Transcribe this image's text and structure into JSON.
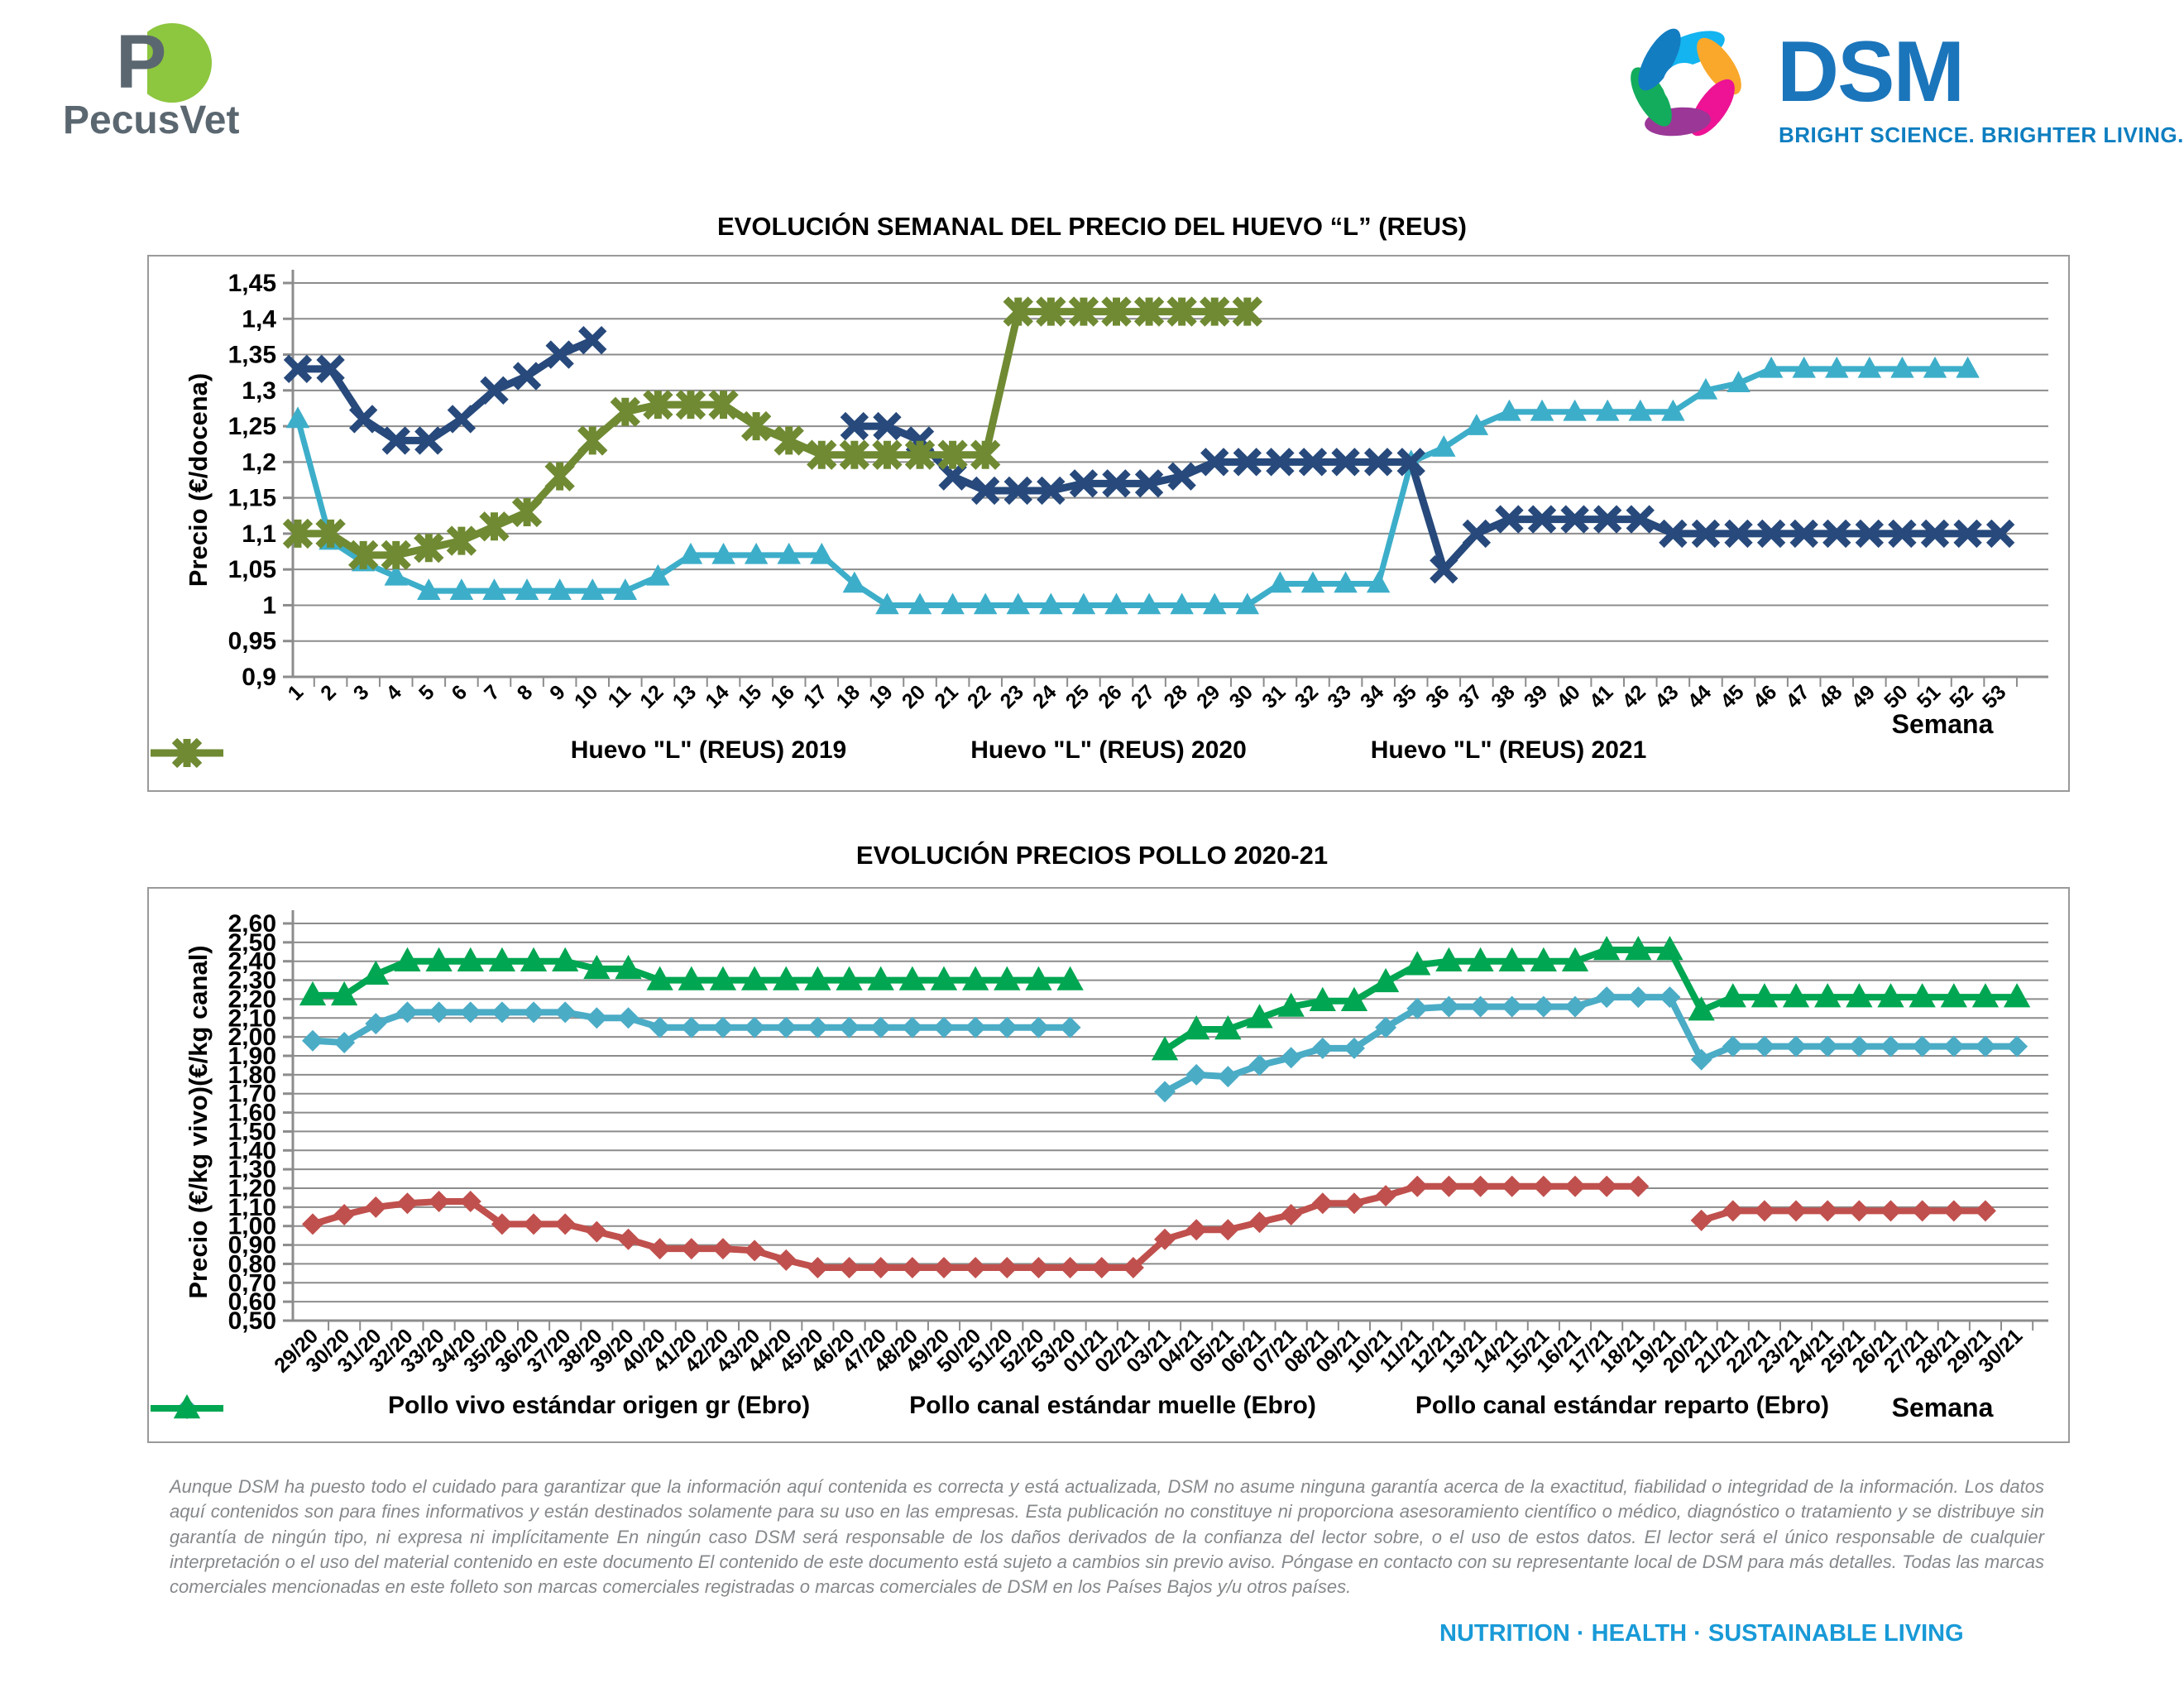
{
  "header": {
    "pecusvet_text": "PecusVet",
    "dsm_text": "DSM",
    "dsm_tagline": "BRIGHT SCIENCE. BRIGHTER LIVING."
  },
  "footer": {
    "disclaimer": "Aunque DSM ha puesto todo el cuidado para garantizar que la información aquí contenida es correcta y está actualizada, DSM no asume ninguna garantía acerca de la exactitud, fiabilidad o integridad de la información. Los datos aquí contenidos son para fines informativos y están destinados solamente para su uso en las empresas. Esta publicación no constituye ni proporciona asesoramiento científico o médico, diagnóstico o tratamiento y se distribuye sin garantía de ningún tipo, ni expresa ni implícitamente En ningún caso DSM será responsable de los daños derivados de la confianza del lector sobre, o el uso de estos datos. El lector será el único responsable de cualquier interpretación o el uso del material contenido en este documento El contenido de este documento está sujeto a cambios sin previo aviso. Póngase en contacto con su representante local de DSM para más detalles. Todas las marcas comerciales mencionadas en este folleto son marcas comerciales registradas o marcas comerciales de DSM en los Países Bajos y/u otros países.",
    "motto": "NUTRITION  ·  HEALTH  ·  SUSTAINABLE LIVING"
  },
  "chart_data": [
    {
      "type": "line",
      "title": "EVOLUCIÓN SEMANAL DEL PRECIO DEL HUEVO “L” (REUS)",
      "ylabel": "Precio (€/docena)",
      "xlabel": "Semana",
      "ylim": [
        0.9,
        1.45
      ],
      "ytick_step": 0.05,
      "ytick_decimals": "trim",
      "grid": true,
      "legend_position": "bottom",
      "categories": [
        "1",
        "2",
        "3",
        "4",
        "5",
        "6",
        "7",
        "8",
        "9",
        "10",
        "11",
        "12",
        "13",
        "14",
        "15",
        "16",
        "17",
        "18",
        "19",
        "20",
        "21",
        "22",
        "23",
        "24",
        "25",
        "26",
        "27",
        "28",
        "29",
        "30",
        "31",
        "32",
        "33",
        "34",
        "35",
        "36",
        "37",
        "38",
        "39",
        "40",
        "41",
        "42",
        "43",
        "44",
        "45",
        "46",
        "47",
        "48",
        "49",
        "50",
        "51",
        "52",
        "53"
      ],
      "series": [
        {
          "name": "Huevo \"L\" (REUS) 2019",
          "color": "#3DAEC9",
          "marker": "triangle",
          "values": [
            1.26,
            1.09,
            1.06,
            1.04,
            1.02,
            1.02,
            1.02,
            1.02,
            1.02,
            1.02,
            1.02,
            1.04,
            1.07,
            1.07,
            1.07,
            1.07,
            1.07,
            1.03,
            1.0,
            1.0,
            1.0,
            1.0,
            1.0,
            1.0,
            1.0,
            1.0,
            1.0,
            1.0,
            1.0,
            1.0,
            1.03,
            1.03,
            1.03,
            1.03,
            1.2,
            1.22,
            1.25,
            1.27,
            1.27,
            1.27,
            1.27,
            1.27,
            1.27,
            1.3,
            1.31,
            1.33,
            1.33,
            1.33,
            1.33,
            1.33,
            1.33,
            1.33,
            null
          ]
        },
        {
          "name": "Huevo \"L\" (REUS) 2020",
          "color": "#27497B",
          "marker": "x",
          "values": [
            1.33,
            1.33,
            1.26,
            1.23,
            1.23,
            1.26,
            1.3,
            1.32,
            1.35,
            1.37,
            null,
            null,
            null,
            null,
            null,
            null,
            null,
            1.25,
            1.25,
            1.23,
            1.18,
            1.16,
            1.16,
            1.16,
            1.17,
            1.17,
            1.17,
            1.18,
            1.2,
            1.2,
            1.2,
            1.2,
            1.2,
            1.2,
            1.2,
            1.05,
            1.1,
            1.12,
            1.12,
            1.12,
            1.12,
            1.12,
            1.1,
            1.1,
            1.1,
            1.1,
            1.1,
            1.1,
            1.1,
            1.1,
            1.1,
            1.1,
            1.1
          ]
        },
        {
          "name": "Huevo \"L\" (REUS) 2021",
          "color": "#6F8A32",
          "marker": "asterisk",
          "values": [
            1.1,
            1.1,
            1.07,
            1.07,
            1.08,
            1.09,
            1.11,
            1.13,
            1.18,
            1.23,
            1.27,
            1.28,
            1.28,
            1.28,
            1.25,
            1.23,
            1.21,
            1.21,
            1.21,
            1.21,
            1.21,
            1.21,
            1.41,
            1.41,
            1.41,
            1.41,
            1.41,
            1.41,
            1.41,
            1.41,
            null,
            null,
            null,
            null,
            null,
            null,
            null,
            null,
            null,
            null,
            null,
            null,
            null,
            null,
            null,
            null,
            null,
            null,
            null,
            null,
            null,
            null,
            null
          ]
        }
      ]
    },
    {
      "type": "line",
      "title": "EVOLUCIÓN PRECIOS POLLO 2020-21",
      "ylabel": "Precio (€/kg vivo)(€/kg canal)",
      "xlabel": "Semana",
      "ylim": [
        0.5,
        2.6
      ],
      "ytick_step": 0.1,
      "ytick_decimals": 2,
      "grid": true,
      "legend_position": "bottom",
      "categories": [
        "29/20",
        "30/20",
        "31/20",
        "32/20",
        "33/20",
        "34/20",
        "35/20",
        "36/20",
        "37/20",
        "38/20",
        "39/20",
        "40/20",
        "41/20",
        "42/20",
        "43/20",
        "44/20",
        "45/20",
        "46/20",
        "47/20",
        "48/20",
        "49/20",
        "50/20",
        "51/20",
        "52/20",
        "53/20",
        "01/21",
        "02/21",
        "03/21",
        "04/21",
        "05/21",
        "06/21",
        "07/21",
        "08/21",
        "09/21",
        "10/21",
        "11/21",
        "12/21",
        "13/21",
        "14/21",
        "15/21",
        "16/21",
        "17/21",
        "18/21",
        "19/21",
        "20/21",
        "21/21",
        "22/21",
        "23/21",
        "24/21",
        "25/21",
        "26/21",
        "27/21",
        "28/21",
        "29/21",
        "30/21"
      ],
      "series": [
        {
          "name": "Pollo vivo estándar origen gr (Ebro)",
          "color": "#C0504D",
          "marker": "diamond",
          "values": [
            1.01,
            1.06,
            1.1,
            1.12,
            1.13,
            1.13,
            1.01,
            1.01,
            1.01,
            0.97,
            0.93,
            0.88,
            0.88,
            0.88,
            0.87,
            0.82,
            0.78,
            0.78,
            0.78,
            0.78,
            0.78,
            0.78,
            0.78,
            0.78,
            0.78,
            0.78,
            0.78,
            0.93,
            0.98,
            0.98,
            1.02,
            1.06,
            1.12,
            1.12,
            1.16,
            1.21,
            1.21,
            1.21,
            1.21,
            1.21,
            1.21,
            1.21,
            1.21,
            null,
            1.03,
            1.08,
            1.08,
            1.08,
            1.08,
            1.08,
            1.08,
            1.08,
            1.08,
            1.08,
            null
          ]
        },
        {
          "name": "Pollo canal estándar muelle (Ebro)",
          "color": "#4BACC6",
          "marker": "diamond",
          "values": [
            1.98,
            1.97,
            2.07,
            2.13,
            2.13,
            2.13,
            2.13,
            2.13,
            2.13,
            2.1,
            2.1,
            2.05,
            2.05,
            2.05,
            2.05,
            2.05,
            2.05,
            2.05,
            2.05,
            2.05,
            2.05,
            2.05,
            2.05,
            2.05,
            2.05,
            null,
            null,
            1.71,
            1.8,
            1.79,
            1.85,
            1.89,
            1.94,
            1.94,
            2.05,
            2.15,
            2.16,
            2.16,
            2.16,
            2.16,
            2.16,
            2.21,
            2.21,
            2.21,
            1.88,
            1.95,
            1.95,
            1.95,
            1.95,
            1.95,
            1.95,
            1.95,
            1.95,
            1.95,
            1.95
          ]
        },
        {
          "name": "Pollo canal estándar reparto (Ebro)",
          "color": "#00A651",
          "marker": "triangle",
          "values": [
            2.22,
            2.22,
            2.33,
            2.4,
            2.4,
            2.4,
            2.4,
            2.4,
            2.4,
            2.36,
            2.36,
            2.3,
            2.3,
            2.3,
            2.3,
            2.3,
            2.3,
            2.3,
            2.3,
            2.3,
            2.3,
            2.3,
            2.3,
            2.3,
            2.3,
            null,
            null,
            1.93,
            2.04,
            2.04,
            2.1,
            2.16,
            2.19,
            2.19,
            2.29,
            2.38,
            2.4,
            2.4,
            2.4,
            2.4,
            2.4,
            2.46,
            2.46,
            2.46,
            2.14,
            2.21,
            2.21,
            2.21,
            2.21,
            2.21,
            2.21,
            2.21,
            2.21,
            2.21,
            2.21
          ]
        }
      ]
    }
  ]
}
